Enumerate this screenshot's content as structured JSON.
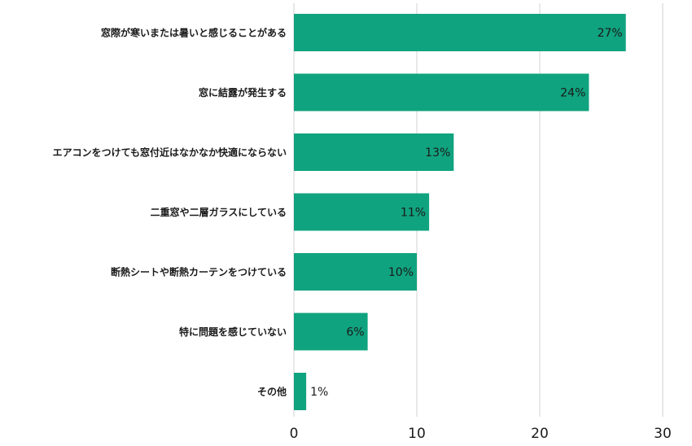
{
  "chart_data": {
    "type": "bar",
    "orientation": "horizontal",
    "categories": [
      "窓際が寒いまたは暑いと感じることがある",
      "窓に結露が発生する",
      "エアコンをつけても窓付近はなかなか快適にならない",
      "二重窓や二層ガラスにしている",
      "断熱シートや断熱カーテンをつけている",
      "特に問題を感じていない",
      "その他"
    ],
    "values": [
      27,
      24,
      13,
      11,
      10,
      6,
      1
    ],
    "value_labels": [
      "27%",
      "24%",
      "13%",
      "11%",
      "10%",
      "6%",
      "1%"
    ],
    "x_ticks": [
      0,
      10,
      20,
      30
    ],
    "x_tick_labels": [
      "0",
      "10",
      "20",
      "30"
    ],
    "xlim": [
      0,
      30
    ],
    "title": "",
    "xlabel": "",
    "ylabel": "",
    "grid": "vertical",
    "legend": "none",
    "colors": {
      "bar": "#10a37f",
      "grid": "#d0d0d0",
      "text": "#1a1a1a"
    }
  }
}
